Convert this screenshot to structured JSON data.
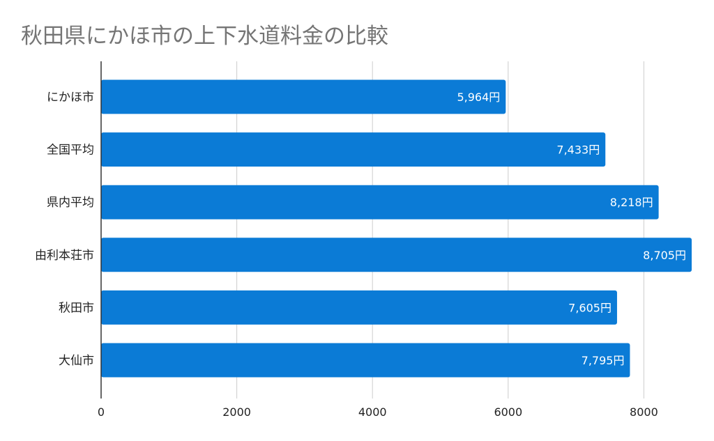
{
  "chart_data": {
    "type": "bar",
    "orientation": "horizontal",
    "title": "秋田県にかほ市の上下水道料金の比較",
    "categories": [
      "にかほ市",
      "全国平均",
      "県内平均",
      "由利本荘市",
      "秋田市",
      "大仙市"
    ],
    "values": [
      5964,
      7433,
      8218,
      8705,
      7605,
      7795
    ],
    "data_labels": [
      "5,964円",
      "7,433円",
      "8,218円",
      "8,705円",
      "7,605円",
      "7,795円"
    ],
    "xlim": [
      0,
      8700
    ],
    "xticks": [
      0,
      2000,
      4000,
      6000,
      8000
    ],
    "xtick_labels": [
      "0",
      "2000",
      "4000",
      "6000",
      "8000"
    ],
    "xlabel": "",
    "ylabel": "",
    "grid": "vertical",
    "bar_color": "#0B7BD6",
    "legend": "none"
  }
}
